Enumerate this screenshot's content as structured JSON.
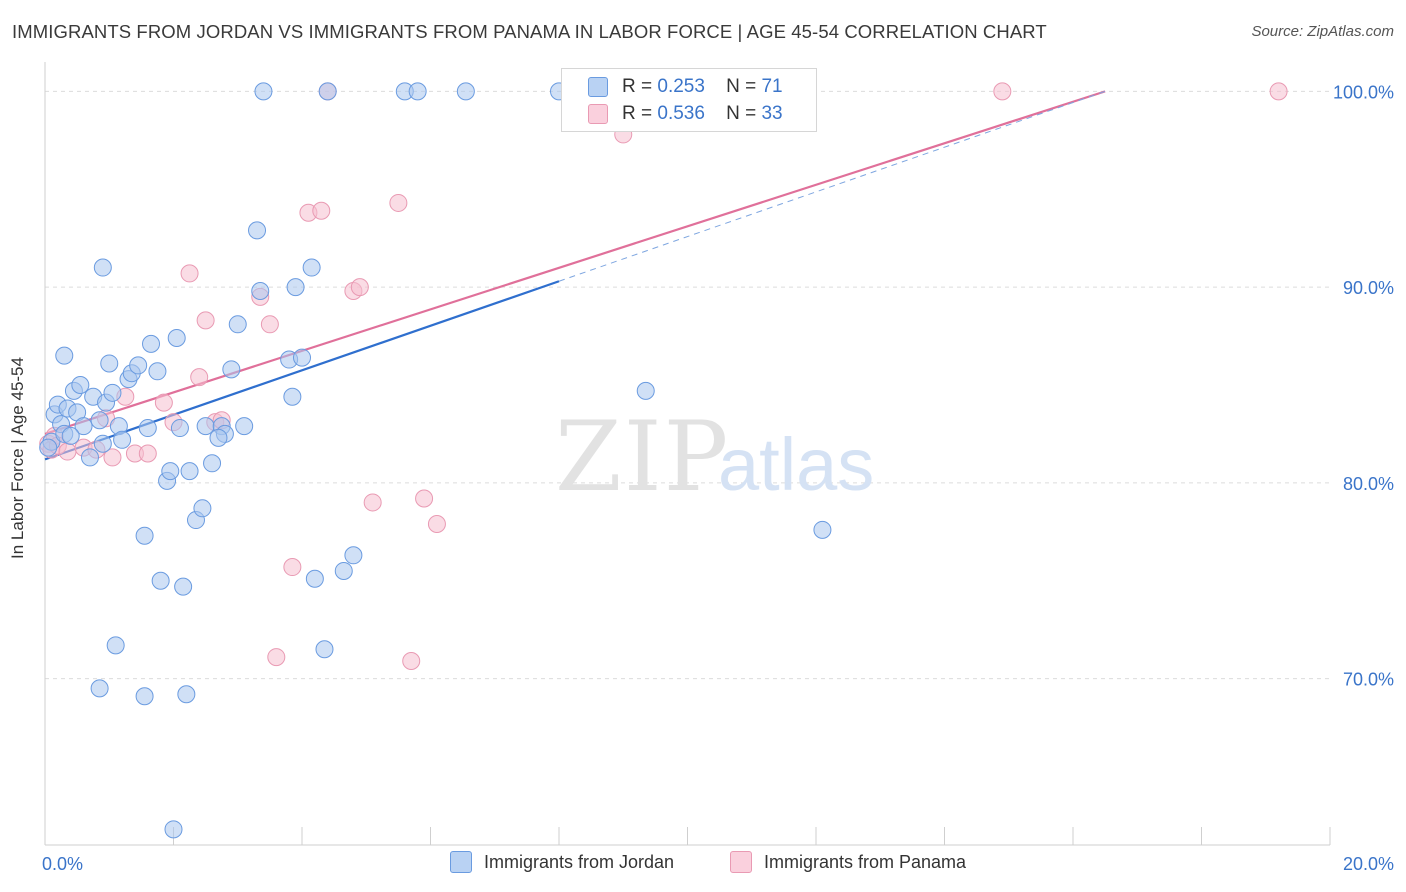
{
  "header": {
    "title": "IMMIGRANTS FROM JORDAN VS IMMIGRANTS FROM PANAMA IN LABOR FORCE | AGE 45-54 CORRELATION CHART",
    "source": "Source: ZipAtlas.com"
  },
  "legend": {
    "r_label": "R =",
    "n_label": "N =",
    "rows": [
      {
        "r": "0.253",
        "n": "71"
      },
      {
        "r": "0.536",
        "n": "33"
      }
    ]
  },
  "watermark": {
    "zip": "ZIP",
    "atlas": "atlas"
  },
  "colors": {
    "blue_fill": "#a9c6ef",
    "blue_stroke": "#6a9be0",
    "blue_line": "#2f6fce",
    "pink_fill": "#f6bfd0",
    "pink_stroke": "#e99ab3",
    "pink_line": "#e0709a",
    "axis_text": "#3a74c9"
  },
  "chart_data": {
    "type": "scatter",
    "title": "IMMIGRANTS FROM JORDAN VS IMMIGRANTS FROM PANAMA IN LABOR FORCE | AGE 45-54 CORRELATION CHART",
    "ylabel": "In Labor Force | Age 45-54",
    "xlabel": "",
    "xlim": [
      0,
      20
    ],
    "ylim": [
      61.5,
      101.5
    ],
    "x_tick_labels": [
      {
        "value": 0,
        "label": "0.0%"
      },
      {
        "value": 20,
        "label": "20.0%"
      }
    ],
    "y_tick_labels": [
      {
        "value": 70,
        "label": "70.0%"
      },
      {
        "value": 80,
        "label": "80.0%"
      },
      {
        "value": 90,
        "label": "90.0%"
      },
      {
        "value": 100,
        "label": "100.0%"
      }
    ],
    "x_minor_ticks": [
      2,
      4,
      6,
      8,
      10,
      12,
      14,
      16,
      18,
      20
    ],
    "grid": "horizontal dashed",
    "legend_position": "top-center",
    "series": [
      {
        "name": "Immigrants from Jordan",
        "color": "#a9c6ef",
        "r": 0.253,
        "n": 71,
        "trend": {
          "x": [
            0,
            8
          ],
          "y": [
            81.2,
            90.3
          ]
        },
        "trend_extension": {
          "x": [
            8,
            16.5
          ],
          "y": [
            90.3,
            100
          ]
        },
        "points": [
          [
            0.1,
            82.1
          ],
          [
            0.15,
            83.5
          ],
          [
            0.2,
            84.0
          ],
          [
            0.25,
            83.0
          ],
          [
            0.3,
            82.5
          ],
          [
            0.35,
            83.8
          ],
          [
            0.45,
            84.7
          ],
          [
            0.5,
            83.6
          ],
          [
            0.55,
            85.0
          ],
          [
            0.6,
            82.9
          ],
          [
            0.7,
            81.3
          ],
          [
            0.75,
            84.4
          ],
          [
            0.85,
            83.2
          ],
          [
            0.9,
            82.0
          ],
          [
            0.95,
            84.1
          ],
          [
            1.0,
            86.1
          ],
          [
            1.05,
            84.6
          ],
          [
            1.15,
            82.9
          ],
          [
            1.2,
            82.2
          ],
          [
            1.3,
            85.3
          ],
          [
            1.35,
            85.6
          ],
          [
            1.45,
            86.0
          ],
          [
            1.55,
            77.3
          ],
          [
            1.6,
            82.8
          ],
          [
            1.65,
            87.1
          ],
          [
            1.75,
            85.7
          ],
          [
            1.8,
            75.0
          ],
          [
            1.9,
            80.1
          ],
          [
            1.95,
            80.6
          ],
          [
            2.05,
            87.4
          ],
          [
            2.1,
            82.8
          ],
          [
            2.15,
            74.7
          ],
          [
            2.25,
            80.6
          ],
          [
            2.35,
            78.1
          ],
          [
            2.45,
            78.7
          ],
          [
            2.5,
            82.9
          ],
          [
            2.6,
            81.0
          ],
          [
            2.75,
            82.9
          ],
          [
            2.8,
            82.5
          ],
          [
            2.9,
            85.8
          ],
          [
            0.3,
            86.5
          ],
          [
            0.9,
            91.0
          ],
          [
            1.1,
            71.7
          ],
          [
            0.85,
            69.5
          ],
          [
            1.55,
            69.1
          ],
          [
            2.2,
            69.2
          ],
          [
            2.0,
            62.3
          ],
          [
            2.7,
            82.3
          ],
          [
            3.0,
            88.1
          ],
          [
            3.1,
            82.9
          ],
          [
            3.3,
            92.9
          ],
          [
            3.35,
            89.8
          ],
          [
            3.8,
            86.3
          ],
          [
            3.85,
            84.4
          ],
          [
            3.9,
            90.0
          ],
          [
            4.0,
            86.4
          ],
          [
            4.15,
            91.0
          ],
          [
            4.2,
            75.1
          ],
          [
            4.35,
            71.5
          ],
          [
            4.65,
            75.5
          ],
          [
            4.8,
            76.3
          ],
          [
            3.4,
            100.0
          ],
          [
            4.4,
            100.0
          ],
          [
            5.6,
            100.0
          ],
          [
            5.8,
            100.0
          ],
          [
            6.55,
            100.0
          ],
          [
            8.0,
            100.0
          ],
          [
            9.35,
            84.7
          ],
          [
            12.1,
            77.6
          ],
          [
            0.05,
            81.8
          ],
          [
            0.4,
            82.4
          ]
        ]
      },
      {
        "name": "Immigrants from Panama",
        "color": "#f6bfd0",
        "r": 0.536,
        "n": 33,
        "trend": {
          "x": [
            0,
            16.5
          ],
          "y": [
            82.5,
            100
          ]
        },
        "points": [
          [
            0.05,
            82.0
          ],
          [
            0.1,
            81.7
          ],
          [
            0.15,
            82.4
          ],
          [
            0.2,
            81.9
          ],
          [
            0.35,
            81.6
          ],
          [
            0.6,
            81.8
          ],
          [
            0.8,
            81.7
          ],
          [
            0.95,
            83.3
          ],
          [
            1.05,
            81.3
          ],
          [
            1.25,
            84.4
          ],
          [
            1.4,
            81.5
          ],
          [
            1.6,
            81.5
          ],
          [
            1.85,
            84.1
          ],
          [
            2.0,
            83.1
          ],
          [
            2.25,
            90.7
          ],
          [
            2.4,
            85.4
          ],
          [
            2.5,
            88.3
          ],
          [
            2.65,
            83.1
          ],
          [
            2.75,
            83.2
          ],
          [
            3.35,
            89.5
          ],
          [
            3.5,
            88.1
          ],
          [
            3.6,
            71.1
          ],
          [
            3.85,
            75.7
          ],
          [
            4.1,
            93.8
          ],
          [
            4.3,
            93.9
          ],
          [
            4.8,
            89.8
          ],
          [
            4.9,
            90.0
          ],
          [
            5.1,
            79.0
          ],
          [
            5.5,
            94.3
          ],
          [
            5.7,
            70.9
          ],
          [
            5.9,
            79.2
          ],
          [
            6.1,
            77.9
          ],
          [
            9.0,
            97.8
          ]
        ],
        "extra_points": [
          [
            4.4,
            100.0
          ],
          [
            14.9,
            100.0
          ],
          [
            19.2,
            100.0
          ]
        ]
      }
    ]
  },
  "bottom_legend": {
    "items": [
      {
        "label": "Immigrants from Jordan"
      },
      {
        "label": "Immigrants from Panama"
      }
    ]
  }
}
